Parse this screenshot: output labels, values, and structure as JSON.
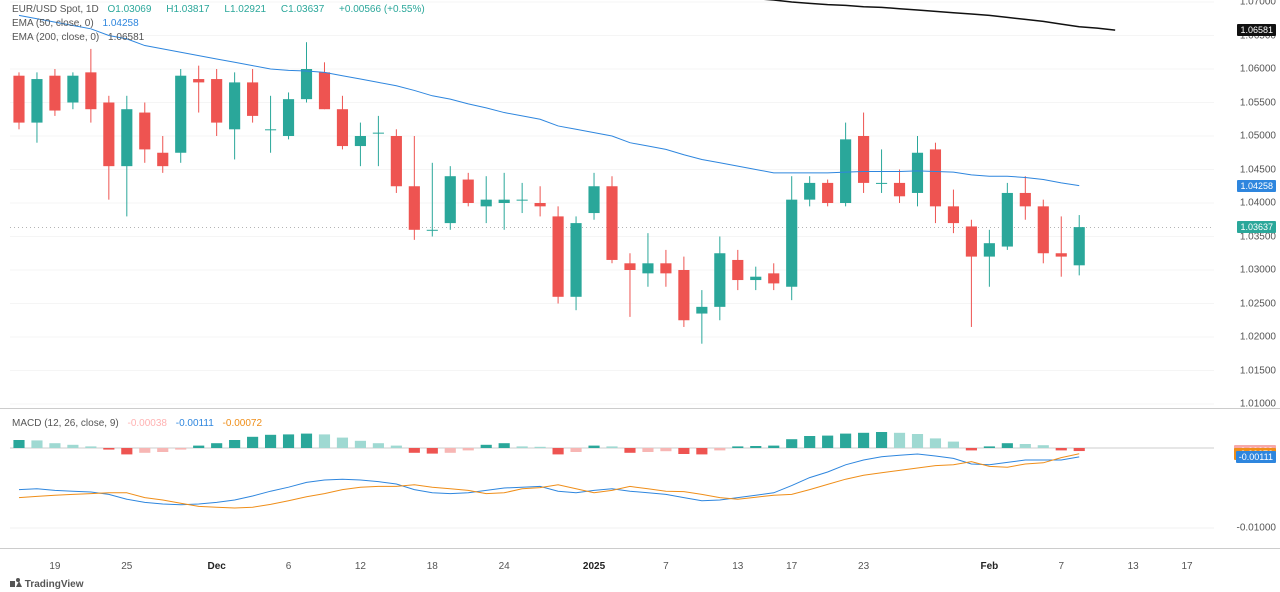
{
  "branding": "TradingView",
  "legend_main": {
    "symbol": "EUR/USD Spot, 1D",
    "O": "1.03069",
    "H": "1.03817",
    "L": "1.02921",
    "C": "1.03637",
    "chg": "+0.00566 (+0.55%)",
    "color_green": "#2aa79a",
    "color_gray": "#a9a9a9"
  },
  "legend_ema50": {
    "text": "EMA (50, close, 0)",
    "val": "1.04258",
    "color": "#2e86de"
  },
  "legend_ema200": {
    "text": "EMA (200, close, 0)",
    "val": "1.06581",
    "color": "#555"
  },
  "legend_macd": {
    "text": "MACD (12, 26, close, 9)",
    "v1": "-0.00038",
    "c1": "#ffb2b2",
    "v2": "-0.00111",
    "c2": "#2e86de",
    "v3": "-0.00072",
    "c3": "#ef8e19"
  },
  "price_axis": {
    "ymin": 1.01,
    "ymax": 1.07,
    "ticks": [
      1.07,
      1.065,
      1.06,
      1.055,
      1.05,
      1.045,
      1.04,
      1.035,
      1.03,
      1.025,
      1.02,
      1.015,
      1.01
    ],
    "markers": [
      {
        "v": 1.06581,
        "bg": "#111111"
      },
      {
        "v": 1.04258,
        "bg": "#2e86de"
      },
      {
        "v": 1.03637,
        "bg": "#2aa79a"
      }
    ],
    "dotted_line": 1.03637
  },
  "macd_axis": {
    "ymin": -0.012,
    "ymax": 0.004,
    "ticks": [
      -0.01
    ],
    "markers": [
      {
        "v": -0.00038,
        "bg": "#f7a8a8"
      },
      {
        "v": -0.00072,
        "bg": "#ef8e19"
      },
      {
        "v": -0.00111,
        "bg": "#2e86de"
      }
    ]
  },
  "x_axis": {
    "labels": [
      {
        "i": 2,
        "t": "19"
      },
      {
        "i": 6,
        "t": "25"
      },
      {
        "i": 11,
        "t": "Dec",
        "bold": true
      },
      {
        "i": 15,
        "t": "6"
      },
      {
        "i": 19,
        "t": "12"
      },
      {
        "i": 23,
        "t": "18"
      },
      {
        "i": 27,
        "t": "24"
      },
      {
        "i": 32,
        "t": "2025",
        "bold": true
      },
      {
        "i": 36,
        "t": "7"
      },
      {
        "i": 40,
        "t": "13"
      },
      {
        "i": 43,
        "t": "17"
      },
      {
        "i": 47,
        "t": "23"
      },
      {
        "i": 54,
        "t": "Feb",
        "bold": true
      },
      {
        "i": 58,
        "t": "7"
      },
      {
        "i": 62,
        "t": "13"
      },
      {
        "i": 65,
        "t": "17"
      }
    ],
    "bar_count": 67
  },
  "colors": {
    "up": "#2aa79a",
    "dn": "#ee5451",
    "up_light": "#9fd9d2",
    "dn_light": "#f7b6b4",
    "ema50": "#2e86de",
    "ema200": "#111111",
    "macd_line": "#2e86de",
    "signal_line": "#ef8e19"
  },
  "candles": [
    {
      "o": 1.059,
      "h": 1.0595,
      "l": 1.051,
      "c": 1.052
    },
    {
      "o": 1.052,
      "h": 1.0595,
      "l": 1.049,
      "c": 1.0585
    },
    {
      "o": 1.059,
      "h": 1.06,
      "l": 1.053,
      "c": 1.0538
    },
    {
      "o": 1.055,
      "h": 1.0595,
      "l": 1.054,
      "c": 1.059
    },
    {
      "o": 1.0595,
      "h": 1.063,
      "l": 1.052,
      "c": 1.054
    },
    {
      "o": 1.055,
      "h": 1.056,
      "l": 1.0405,
      "c": 1.0455
    },
    {
      "o": 1.0455,
      "h": 1.056,
      "l": 1.038,
      "c": 1.054
    },
    {
      "o": 1.0535,
      "h": 1.055,
      "l": 1.046,
      "c": 1.048
    },
    {
      "o": 1.0475,
      "h": 1.05,
      "l": 1.0445,
      "c": 1.0455
    },
    {
      "o": 1.0475,
      "h": 1.06,
      "l": 1.046,
      "c": 1.059
    },
    {
      "o": 1.0585,
      "h": 1.0605,
      "l": 1.0535,
      "c": 1.058
    },
    {
      "o": 1.0585,
      "h": 1.06,
      "l": 1.05,
      "c": 1.052
    },
    {
      "o": 1.051,
      "h": 1.0595,
      "l": 1.0465,
      "c": 1.058
    },
    {
      "o": 1.058,
      "h": 1.06,
      "l": 1.052,
      "c": 1.053
    },
    {
      "o": 1.051,
      "h": 1.056,
      "l": 1.0475,
      "c": 1.051
    },
    {
      "o": 1.05,
      "h": 1.0565,
      "l": 1.0495,
      "c": 1.0555
    },
    {
      "o": 1.0555,
      "h": 1.064,
      "l": 1.055,
      "c": 1.06
    },
    {
      "o": 1.0595,
      "h": 1.061,
      "l": 1.054,
      "c": 1.054
    },
    {
      "o": 1.054,
      "h": 1.056,
      "l": 1.048,
      "c": 1.0485
    },
    {
      "o": 1.0485,
      "h": 1.052,
      "l": 1.0455,
      "c": 1.05
    },
    {
      "o": 1.0505,
      "h": 1.053,
      "l": 1.0455,
      "c": 1.0505
    },
    {
      "o": 1.05,
      "h": 1.051,
      "l": 1.0415,
      "c": 1.0425
    },
    {
      "o": 1.0425,
      "h": 1.05,
      "l": 1.0345,
      "c": 1.036
    },
    {
      "o": 1.036,
      "h": 1.046,
      "l": 1.035,
      "c": 1.036
    },
    {
      "o": 1.037,
      "h": 1.0455,
      "l": 1.036,
      "c": 1.044
    },
    {
      "o": 1.0435,
      "h": 1.0445,
      "l": 1.0395,
      "c": 1.04
    },
    {
      "o": 1.0395,
      "h": 1.044,
      "l": 1.037,
      "c": 1.0405
    },
    {
      "o": 1.04,
      "h": 1.0445,
      "l": 1.036,
      "c": 1.0405
    },
    {
      "o": 1.0405,
      "h": 1.043,
      "l": 1.0385,
      "c": 1.0405
    },
    {
      "o": 1.04,
      "h": 1.0425,
      "l": 1.038,
      "c": 1.0395
    },
    {
      "o": 1.038,
      "h": 1.0395,
      "l": 1.025,
      "c": 1.026
    },
    {
      "o": 1.026,
      "h": 1.038,
      "l": 1.024,
      "c": 1.037
    },
    {
      "o": 1.0385,
      "h": 1.0445,
      "l": 1.0375,
      "c": 1.0425
    },
    {
      "o": 1.0425,
      "h": 1.044,
      "l": 1.031,
      "c": 1.0315
    },
    {
      "o": 1.031,
      "h": 1.0325,
      "l": 1.023,
      "c": 1.03
    },
    {
      "o": 1.0295,
      "h": 1.0355,
      "l": 1.0275,
      "c": 1.031
    },
    {
      "o": 1.031,
      "h": 1.033,
      "l": 1.0275,
      "c": 1.0295
    },
    {
      "o": 1.03,
      "h": 1.032,
      "l": 1.0215,
      "c": 1.0225
    },
    {
      "o": 1.0235,
      "h": 1.027,
      "l": 1.019,
      "c": 1.0245
    },
    {
      "o": 1.0245,
      "h": 1.035,
      "l": 1.0225,
      "c": 1.0325
    },
    {
      "o": 1.0315,
      "h": 1.033,
      "l": 1.027,
      "c": 1.0285
    },
    {
      "o": 1.0285,
      "h": 1.0305,
      "l": 1.027,
      "c": 1.029
    },
    {
      "o": 1.0295,
      "h": 1.031,
      "l": 1.027,
      "c": 1.028
    },
    {
      "o": 1.0275,
      "h": 1.044,
      "l": 1.0255,
      "c": 1.0405
    },
    {
      "o": 1.0405,
      "h": 1.044,
      "l": 1.0395,
      "c": 1.043
    },
    {
      "o": 1.043,
      "h": 1.0435,
      "l": 1.0395,
      "c": 1.04
    },
    {
      "o": 1.04,
      "h": 1.052,
      "l": 1.0395,
      "c": 1.0495
    },
    {
      "o": 1.05,
      "h": 1.0535,
      "l": 1.0415,
      "c": 1.043
    },
    {
      "o": 1.043,
      "h": 1.048,
      "l": 1.0415,
      "c": 1.043
    },
    {
      "o": 1.043,
      "h": 1.045,
      "l": 1.04,
      "c": 1.041
    },
    {
      "o": 1.0415,
      "h": 1.05,
      "l": 1.0395,
      "c": 1.0475
    },
    {
      "o": 1.048,
      "h": 1.049,
      "l": 1.037,
      "c": 1.0395
    },
    {
      "o": 1.0395,
      "h": 1.042,
      "l": 1.0355,
      "c": 1.037
    },
    {
      "o": 1.0365,
      "h": 1.0375,
      "l": 1.0215,
      "c": 1.032
    },
    {
      "o": 1.032,
      "h": 1.036,
      "l": 1.0275,
      "c": 1.034
    },
    {
      "o": 1.0335,
      "h": 1.043,
      "l": 1.033,
      "c": 1.0415
    },
    {
      "o": 1.0415,
      "h": 1.044,
      "l": 1.0375,
      "c": 1.0395
    },
    {
      "o": 1.0395,
      "h": 1.0405,
      "l": 1.031,
      "c": 1.0325
    },
    {
      "o": 1.0325,
      "h": 1.038,
      "l": 1.029,
      "c": 1.032
    },
    {
      "o": 1.0307,
      "h": 1.0382,
      "l": 1.0292,
      "c": 1.0364
    }
  ],
  "ema50": [
    1.068,
    1.0675,
    1.067,
    1.0665,
    1.066,
    1.065,
    1.0645,
    1.0635,
    1.063,
    1.0625,
    1.062,
    1.0615,
    1.061,
    1.0605,
    1.06,
    1.0598,
    1.0597,
    1.0595,
    1.059,
    1.0585,
    1.058,
    1.0575,
    1.0568,
    1.056,
    1.0555,
    1.0548,
    1.0542,
    1.0535,
    1.053,
    1.0525,
    1.0515,
    1.051,
    1.0505,
    1.05,
    1.049,
    1.0485,
    1.048,
    1.0472,
    1.0465,
    1.046,
    1.0455,
    1.045,
    1.0445,
    1.0445,
    1.0445,
    1.0445,
    1.0446,
    1.0447,
    1.0447,
    1.0447,
    1.0448,
    1.0447,
    1.0446,
    1.0442,
    1.044,
    1.044,
    1.0438,
    1.0435,
    1.043,
    1.0426
  ],
  "ema200_segment": {
    "from_i": 37,
    "vals": [
      1.0715,
      1.0712,
      1.071,
      1.0707,
      1.0705,
      1.0703,
      1.07,
      1.0698,
      1.0696,
      1.0695,
      1.0693,
      1.0692,
      1.069,
      1.0688,
      1.0686,
      1.0684,
      1.0682,
      1.068,
      1.0677,
      1.0674,
      1.0671,
      1.0667,
      1.0663,
      1.0661,
      1.06581
    ]
  },
  "macd": {
    "histogram": [
      0.001,
      0.00095,
      0.0006,
      0.0004,
      0.0002,
      -0.0002,
      -0.0008,
      -0.0006,
      -0.0005,
      -0.0002,
      0.0003,
      0.0006,
      0.001,
      0.0014,
      0.00165,
      0.0017,
      0.0018,
      0.0017,
      0.0013,
      0.0009,
      0.0006,
      0.0003,
      -0.0006,
      -0.0007,
      -0.0006,
      -0.0003,
      0.0004,
      0.0006,
      0.0002,
      0.00015,
      -0.0008,
      -0.0005,
      0.0003,
      0.0002,
      -0.0006,
      -0.0005,
      -0.0004,
      -0.00075,
      -0.0008,
      -0.0003,
      0.0002,
      0.00025,
      0.0003,
      0.0011,
      0.0015,
      0.00155,
      0.0018,
      0.0019,
      0.002,
      0.0019,
      0.00175,
      0.0012,
      0.0008,
      -0.0003,
      0.0002,
      0.0006,
      0.0005,
      0.00035,
      -0.0003,
      -0.00038
    ],
    "macd_line": [
      -0.0052,
      -0.0051,
      -0.0053,
      -0.0054,
      -0.0055,
      -0.0058,
      -0.0064,
      -0.0068,
      -0.007,
      -0.0071,
      -0.007,
      -0.0068,
      -0.0065,
      -0.006,
      -0.0054,
      -0.0049,
      -0.0043,
      -0.004,
      -0.0039,
      -0.004,
      -0.0042,
      -0.0045,
      -0.0052,
      -0.0056,
      -0.0057,
      -0.0056,
      -0.0053,
      -0.005,
      -0.0049,
      -0.0048,
      -0.0054,
      -0.0056,
      -0.0053,
      -0.0051,
      -0.0054,
      -0.0056,
      -0.0058,
      -0.0062,
      -0.0066,
      -0.0065,
      -0.0062,
      -0.0059,
      -0.0056,
      -0.0047,
      -0.0037,
      -0.003,
      -0.0021,
      -0.0015,
      -0.0011,
      -0.0009,
      -0.00075,
      -0.001,
      -0.0013,
      -0.002,
      -0.0021,
      -0.0018,
      -0.0015,
      -0.0015,
      -0.0015,
      -0.00111
    ],
    "signal_line": [
      -0.0062,
      -0.00605,
      -0.0059,
      -0.0058,
      -0.0057,
      -0.0056,
      -0.0056,
      -0.0062,
      -0.0065,
      -0.0069,
      -0.0073,
      -0.0074,
      -0.0075,
      -0.0074,
      -0.00705,
      -0.0066,
      -0.0061,
      -0.0057,
      -0.0052,
      -0.0049,
      -0.0048,
      -0.0048,
      -0.0046,
      -0.0049,
      -0.0051,
      -0.0053,
      -0.0057,
      -0.0056,
      -0.0051,
      -0.00495,
      -0.0046,
      -0.0051,
      -0.0056,
      -0.0053,
      -0.0048,
      -0.0051,
      -0.0054,
      -0.00545,
      -0.0058,
      -0.0062,
      -0.0064,
      -0.00615,
      -0.0059,
      -0.0058,
      -0.0052,
      -0.00455,
      -0.0039,
      -0.0034,
      -0.0031,
      -0.0028,
      -0.0025,
      -0.0022,
      -0.0021,
      -0.0017,
      -0.0023,
      -0.0024,
      -0.002,
      -0.00185,
      -0.0012,
      -0.00072
    ]
  }
}
